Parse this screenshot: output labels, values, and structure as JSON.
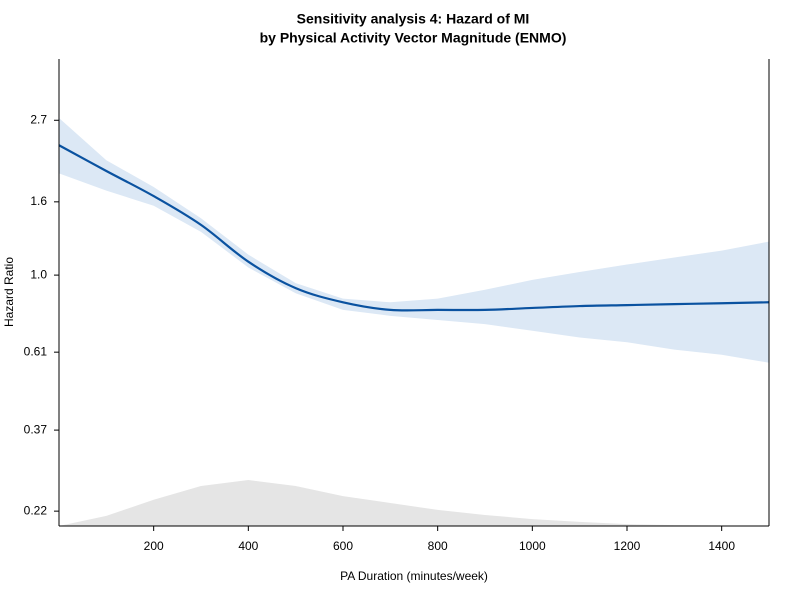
{
  "chart_data": {
    "type": "line",
    "title": [
      "Sensitivity analysis 4: Hazard of MI",
      "by Physical Activity Vector Magnitude (ENMO)"
    ],
    "x_label": "PA Duration (minutes/week)",
    "y_label": "Hazard Ratio",
    "x": [
      0,
      100,
      200,
      300,
      400,
      500,
      600,
      700,
      800,
      900,
      1000,
      1100,
      1200,
      1300,
      1400,
      1500
    ],
    "values": [
      2.3,
      1.95,
      1.66,
      1.38,
      1.09,
      0.92,
      0.84,
      0.8,
      0.8,
      0.8,
      0.81,
      0.82,
      0.825,
      0.83,
      0.835,
      0.84
    ],
    "ci_upper": [
      2.74,
      2.09,
      1.76,
      1.44,
      1.14,
      0.95,
      0.86,
      0.84,
      0.86,
      0.91,
      0.97,
      1.02,
      1.07,
      1.12,
      1.17,
      1.24
    ],
    "ci_lower": [
      1.92,
      1.72,
      1.56,
      1.32,
      1.05,
      0.89,
      0.8,
      0.77,
      0.75,
      0.73,
      0.7,
      0.67,
      0.65,
      0.62,
      0.6,
      0.57
    ],
    "color": "#0a52a0",
    "band_color": "#dce8f5",
    "distribution": {
      "values": [
        0,
        0.22,
        0.57,
        0.87,
        1.0,
        0.87,
        0.65,
        0.5,
        0.35,
        0.24,
        0.15,
        0.09,
        0.04,
        0.02,
        0.01,
        0
      ],
      "color": "#e5e5e5"
    },
    "xlim": [
      0,
      1500
    ],
    "xticks": [
      200,
      400,
      600,
      800,
      1000,
      1200,
      1400
    ],
    "ylim": [
      0.2,
      4.0
    ],
    "log_y": true,
    "yticks": [
      0.22,
      0.37,
      0.61,
      {
        "value": 1,
        "label": "1.0"
      },
      1.6,
      2.7
    ]
  }
}
